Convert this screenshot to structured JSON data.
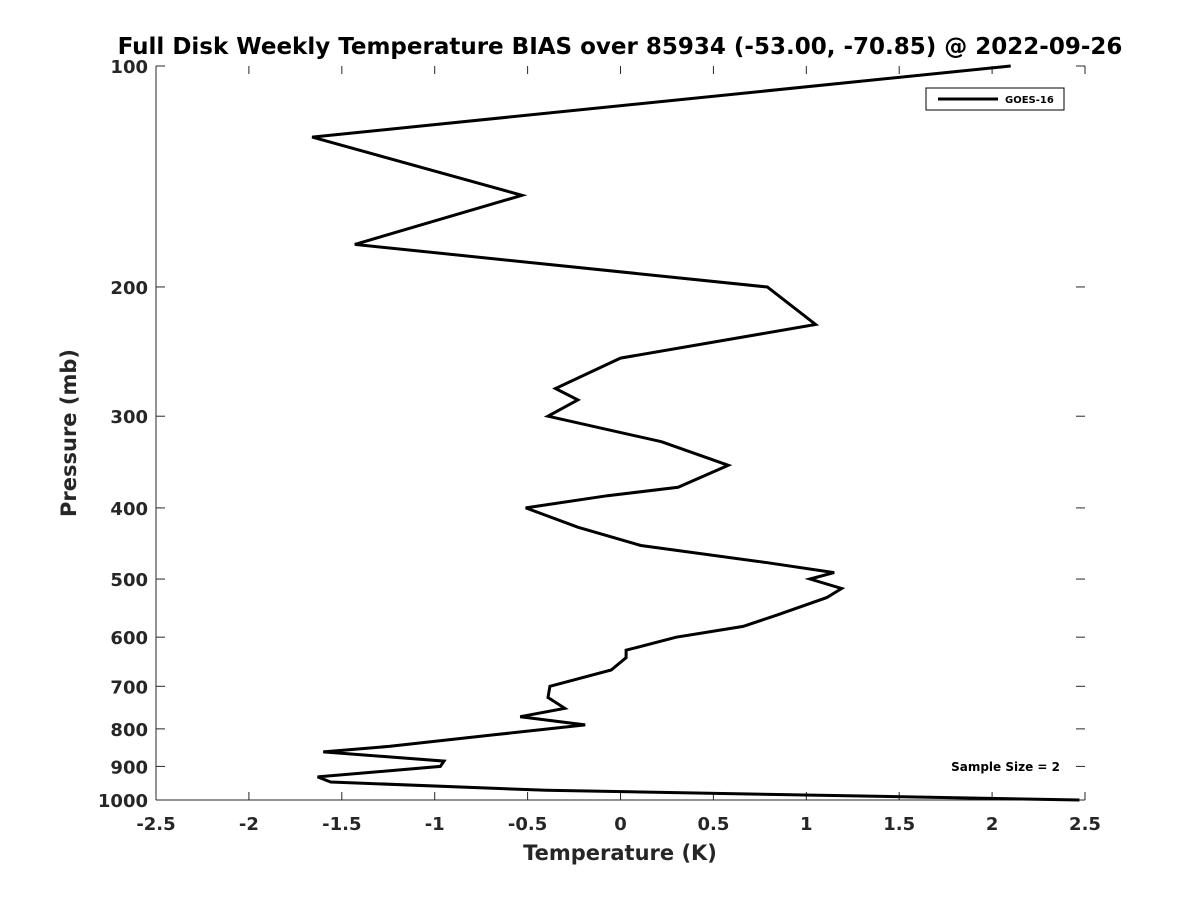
{
  "chart_data": {
    "type": "line",
    "title": "Full Disk Weekly Temperature BIAS over 85934 (-53.00, -70.85) @ 2022-09-26",
    "xlabel": "Temperature (K)",
    "ylabel": "Pressure (mb)",
    "xlim": [
      -2.5,
      2.5
    ],
    "ylim": [
      100,
      1000
    ],
    "y_scale": "log",
    "y_reversed": true,
    "x_ticks": [
      "-2.5",
      "-2",
      "-1.5",
      "-1",
      "-0.5",
      "0",
      "0.5",
      "1",
      "1.5",
      "2",
      "2.5"
    ],
    "y_ticks": [
      "100",
      "200",
      "300",
      "400",
      "500",
      "600",
      "700",
      "800",
      "900",
      "1000"
    ],
    "grid": false,
    "legend_position": "top-right",
    "annotation": "Sample Size = 2",
    "series": [
      {
        "name": "GOES-16",
        "color": "#000000",
        "points": [
          [
            2.1,
            100
          ],
          [
            -1.66,
            125
          ],
          [
            -0.53,
            150
          ],
          [
            -1.43,
            175
          ],
          [
            0.79,
            200
          ],
          [
            1.05,
            225
          ],
          [
            0.0,
            250
          ],
          [
            -0.35,
            275
          ],
          [
            -0.23,
            285
          ],
          [
            -0.39,
            300
          ],
          [
            0.22,
            325
          ],
          [
            0.58,
            350
          ],
          [
            0.31,
            375
          ],
          [
            -0.07,
            385
          ],
          [
            -0.51,
            400
          ],
          [
            -0.23,
            425
          ],
          [
            0.11,
            450
          ],
          [
            0.79,
            475
          ],
          [
            1.15,
            490
          ],
          [
            1.02,
            500
          ],
          [
            1.19,
            515
          ],
          [
            1.11,
            530
          ],
          [
            0.84,
            560
          ],
          [
            0.66,
            580
          ],
          [
            0.3,
            600
          ],
          [
            0.03,
            625
          ],
          [
            0.03,
            640
          ],
          [
            -0.05,
            665
          ],
          [
            -0.38,
            700
          ],
          [
            -0.39,
            725
          ],
          [
            -0.3,
            750
          ],
          [
            -0.54,
            770
          ],
          [
            -0.19,
            790
          ],
          [
            -0.68,
            815
          ],
          [
            -1.24,
            845
          ],
          [
            -1.6,
            860
          ],
          [
            -0.95,
            885
          ],
          [
            -0.97,
            900
          ],
          [
            -1.63,
            930
          ],
          [
            -1.56,
            945
          ],
          [
            -0.4,
            970
          ],
          [
            2.47,
            1000
          ]
        ]
      }
    ]
  }
}
